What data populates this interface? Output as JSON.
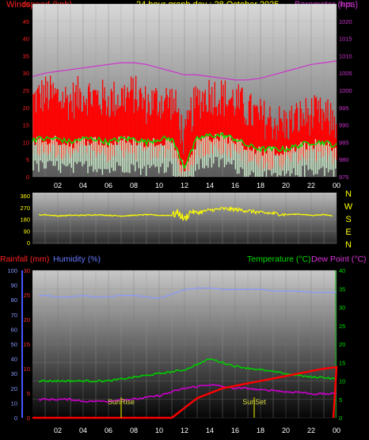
{
  "title": "24 hour graph day : 28 October 2025",
  "colors": {
    "wind": "#ff0000",
    "gust_fill": "#ff0000",
    "avg": "#00e000",
    "baro": "#cc33cc",
    "light": "#cceecc",
    "dir": "#ffff00",
    "rain": "#ff0000",
    "humidity": "#8899ff",
    "temp": "#00cc00",
    "dew": "#cc00cc",
    "sun": "#aaaa00"
  },
  "time_ticks": [
    "02",
    "04",
    "06",
    "08",
    "10",
    "12",
    "14",
    "16",
    "18",
    "20",
    "22",
    "00"
  ],
  "direction_letters": [
    "N",
    "W",
    "S",
    "E",
    "N"
  ],
  "chart_data": [
    {
      "type": "line",
      "panel": "wind-baro",
      "left_label": "Windspeed (kph)",
      "right_label": "Barometer (hpa)",
      "ylim": [
        0,
        50
      ],
      "y_ticks": [
        "0",
        "5",
        "10",
        "15",
        "20",
        "25",
        "30",
        "35",
        "40",
        "45",
        "50"
      ],
      "y2lim": [
        975,
        1025
      ],
      "y2_ticks": [
        "975",
        "980",
        "985",
        "990",
        "995",
        "1000",
        "1005",
        "1010",
        "1015",
        "1020",
        "1025"
      ],
      "x_hours": [
        0,
        1,
        2,
        3,
        4,
        5,
        6,
        7,
        8,
        9,
        10,
        11,
        11.5,
        12,
        12.5,
        13,
        14,
        15,
        16,
        17,
        18,
        19,
        20,
        21,
        22,
        23,
        24
      ],
      "series": [
        {
          "key": "gust",
          "values": [
            22,
            24,
            23,
            22,
            24,
            23,
            22,
            23,
            24,
            21,
            22,
            22,
            18,
            10,
            18,
            22,
            24,
            23,
            22,
            19,
            17,
            16,
            15,
            17,
            18,
            17,
            16
          ]
        },
        {
          "key": "wind_avg",
          "values": [
            11,
            11,
            11,
            10,
            11,
            11,
            10,
            11,
            11,
            10,
            11,
            11,
            7,
            3,
            7,
            11,
            12,
            12,
            11,
            9,
            8,
            8,
            8,
            9,
            10,
            10,
            9
          ]
        },
        {
          "key": "barometer",
          "values": [
            1004,
            1005,
            1005.5,
            1006,
            1006.5,
            1007,
            1007.5,
            1008,
            1008,
            1007.5,
            1006.5,
            1005.5,
            1005,
            1004.5,
            1004.5,
            1004.5,
            1004,
            1003.5,
            1003,
            1003,
            1003.5,
            1004.5,
            1005.5,
            1006.5,
            1007.5,
            1008,
            1008.5
          ]
        }
      ]
    },
    {
      "type": "scatter",
      "panel": "direction",
      "ylim": [
        0,
        360
      ],
      "y_ticks": [
        "0",
        "90",
        "180",
        "270",
        "360"
      ],
      "x_hours": [
        0,
        1,
        2,
        3,
        4,
        5,
        6,
        7,
        8,
        9,
        10,
        11,
        11.5,
        12,
        12.5,
        13,
        14,
        15,
        16,
        17,
        18,
        19,
        20,
        21,
        22,
        23,
        24
      ],
      "series": [
        {
          "key": "direction",
          "values": [
            210,
            215,
            205,
            210,
            210,
            215,
            210,
            205,
            210,
            215,
            210,
            210,
            230,
            180,
            240,
            230,
            250,
            260,
            255,
            245,
            230,
            225,
            215,
            220,
            210,
            215,
            205
          ]
        }
      ]
    },
    {
      "type": "line",
      "panel": "rain-temp",
      "left_label_rain": "Rainfall (mm)",
      "left_label_hum": "Humidity (%)",
      "right_label_temp": "Temperature (°C)",
      "right_label_dew": "Dew Point (°C)",
      "rain_ylim": [
        0,
        30
      ],
      "rain_ticks": [
        "0",
        "5",
        "10",
        "15",
        "20",
        "25",
        "30"
      ],
      "hum_ylim": [
        0,
        100
      ],
      "hum_ticks": [
        "0",
        "10",
        "20",
        "30",
        "40",
        "50",
        "60",
        "70",
        "80",
        "90",
        "100"
      ],
      "temp_ylim": [
        0,
        40
      ],
      "temp_ticks": [
        "0",
        "5",
        "10",
        "15",
        "20",
        "25",
        "30",
        "35",
        "40"
      ],
      "x_hours": [
        0,
        1,
        2,
        3,
        4,
        5,
        6,
        7,
        8,
        9,
        10,
        11,
        12,
        13,
        14,
        15,
        16,
        17,
        18,
        19,
        20,
        21,
        22,
        23,
        24
      ],
      "series": [
        {
          "key": "humidity",
          "values": [
            83,
            83,
            82,
            82,
            83,
            82,
            82,
            83,
            83,
            82,
            81,
            84,
            87,
            88,
            88,
            87,
            87,
            87,
            87,
            86,
            86,
            86,
            85,
            85,
            85
          ]
        },
        {
          "key": "temperature",
          "values": [
            10,
            10,
            10,
            10,
            10,
            10,
            10,
            10.5,
            11,
            11.5,
            12,
            12.5,
            13,
            14.5,
            16,
            15,
            14,
            13.5,
            13,
            12.5,
            12,
            11.5,
            11,
            11,
            10.5
          ]
        },
        {
          "key": "dew_point",
          "values": [
            5,
            5,
            5,
            5,
            4.5,
            4.5,
            4.5,
            5,
            5,
            5.5,
            6,
            7,
            8,
            8.5,
            9,
            8.5,
            8,
            8,
            7.5,
            7.5,
            7,
            7,
            6.5,
            6.5,
            6.5
          ]
        },
        {
          "key": "rain_cumulative",
          "values": [
            0,
            0,
            0,
            0,
            0,
            0,
            0,
            0,
            0,
            0,
            0,
            0,
            2,
            4,
            5,
            6,
            6.5,
            7,
            7.5,
            8,
            8.5,
            9,
            9.5,
            10,
            10.3
          ]
        }
      ],
      "annotations": [
        {
          "label": "SunRise",
          "x_hour": 7.0
        },
        {
          "label": "SunSet",
          "x_hour": 17.5
        }
      ]
    }
  ]
}
